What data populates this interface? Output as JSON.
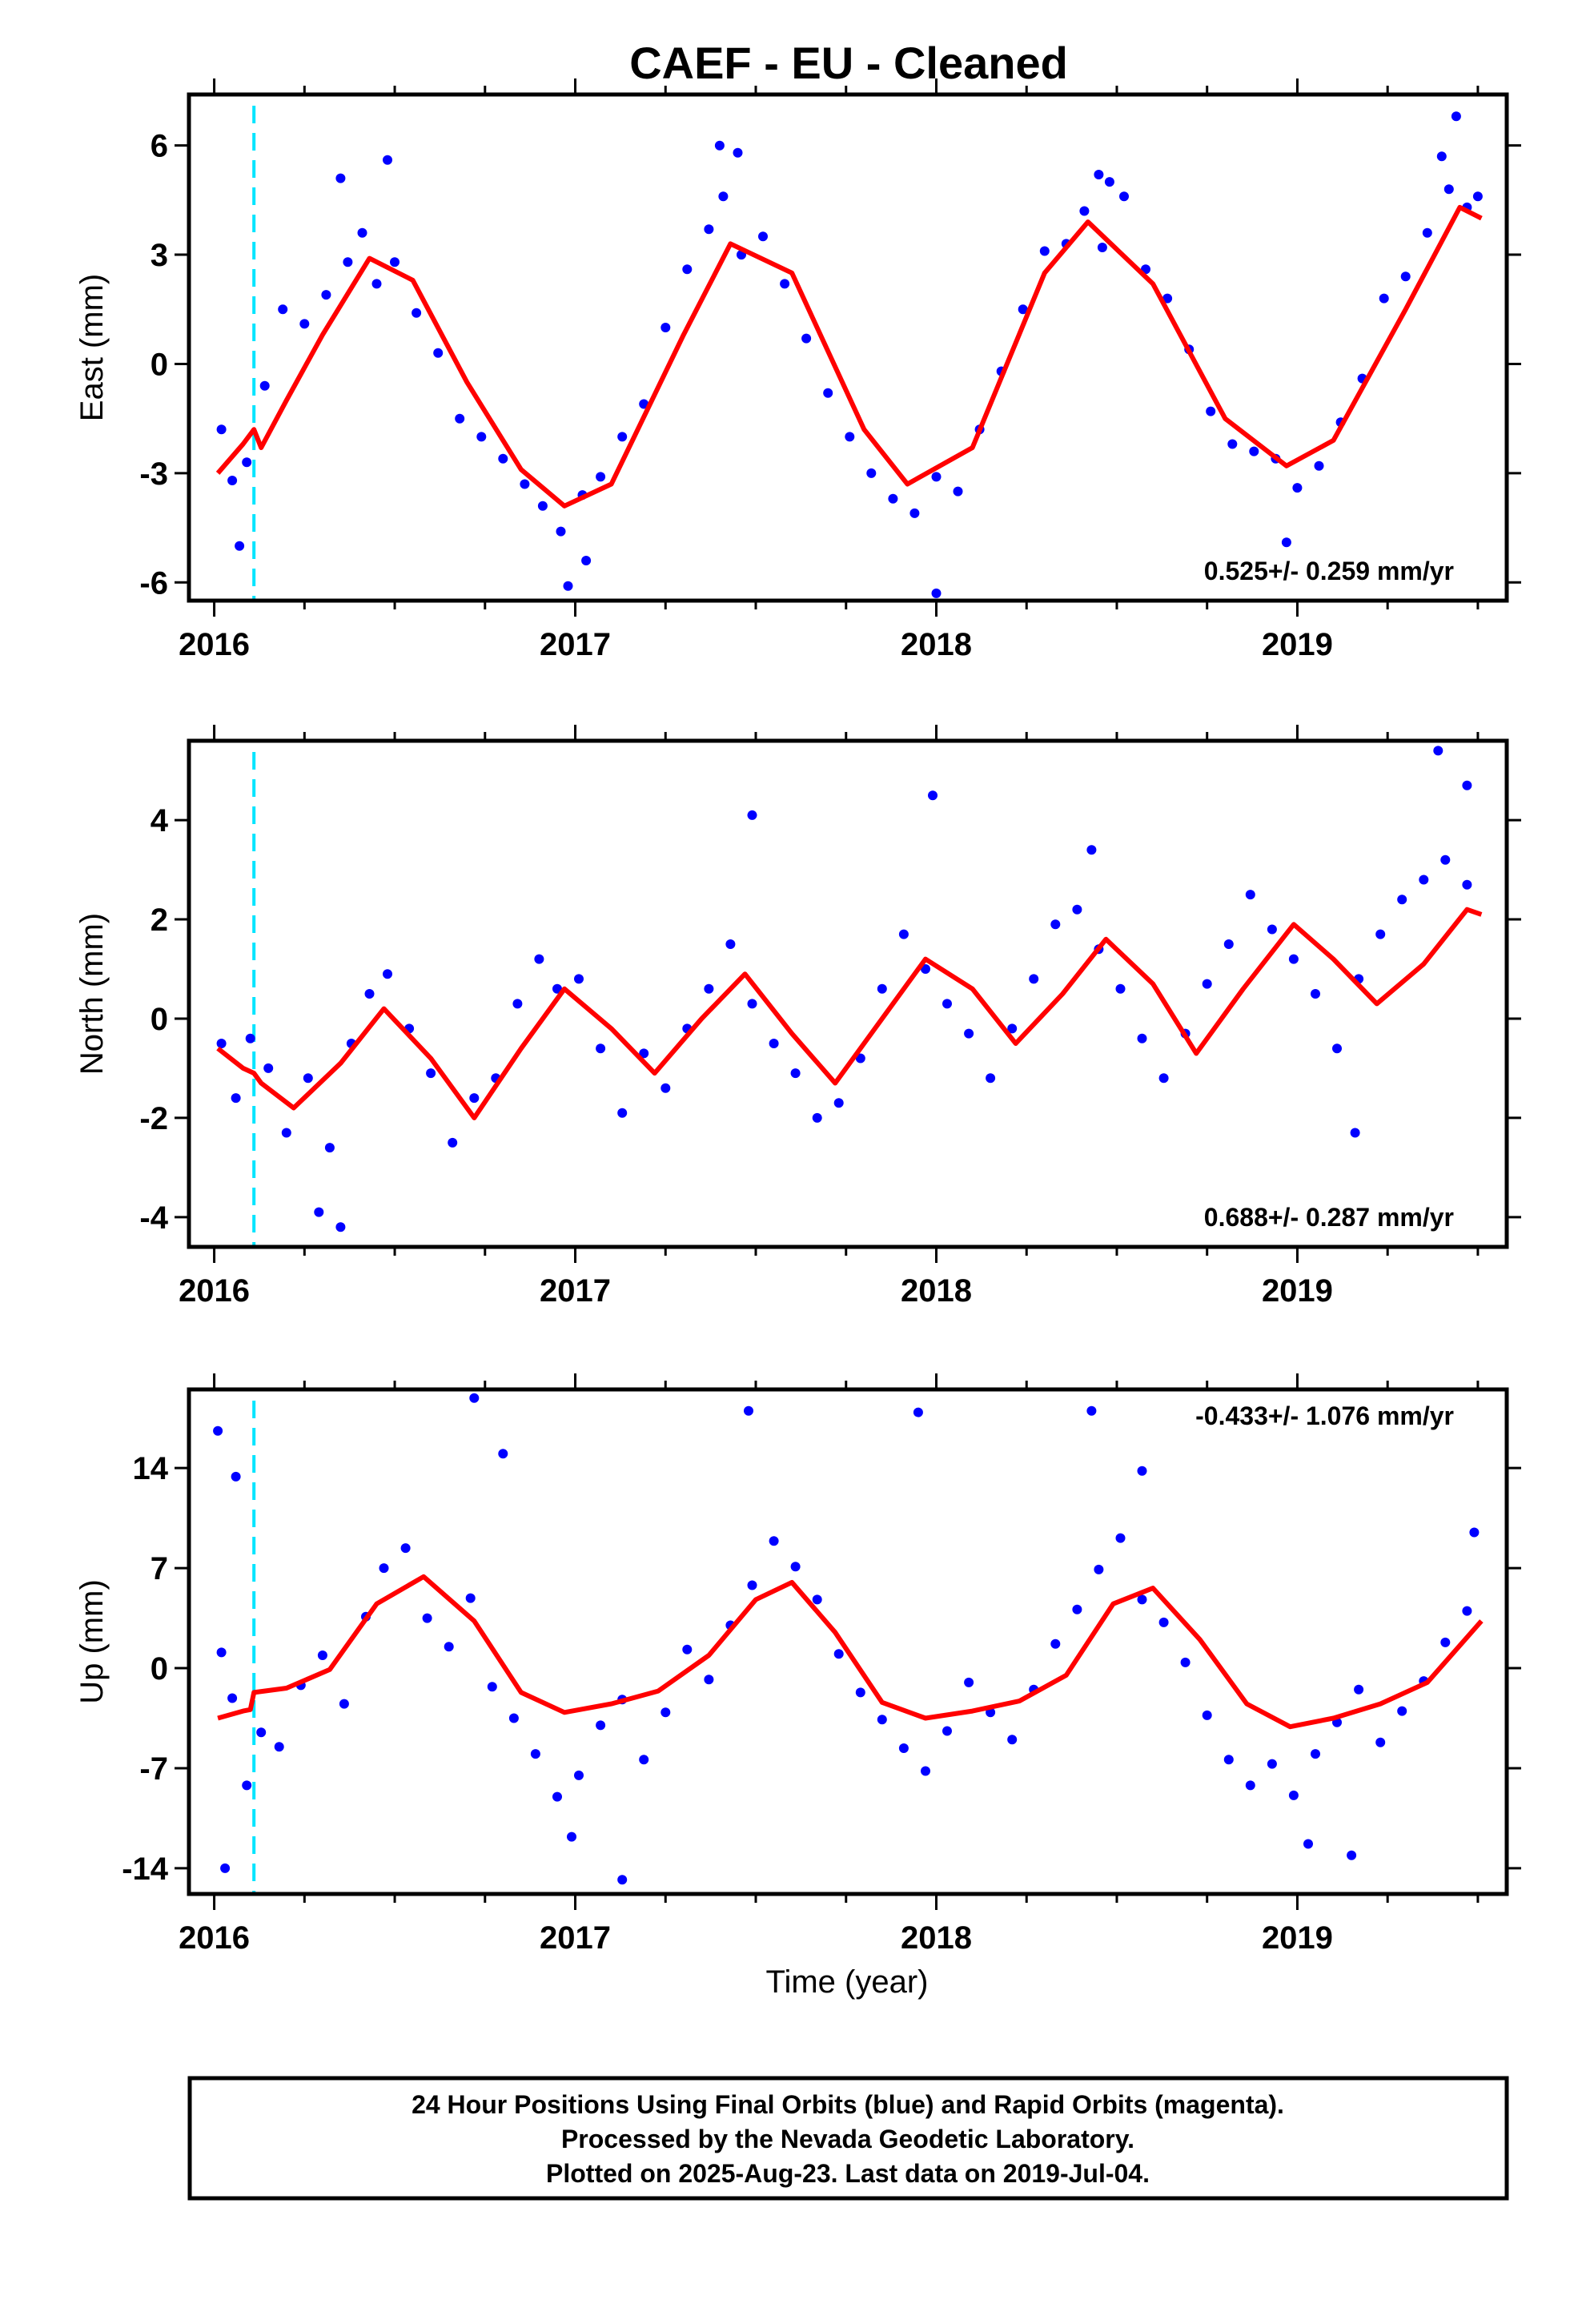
{
  "title": "CAEF  - EU - Cleaned",
  "xlabel": "Time (year)",
  "footer": {
    "line1": "24 Hour Positions Using Final Orbits (blue) and Rapid Orbits (magenta).",
    "line2": "Processed by the Nevada Geodetic Laboratory.",
    "line3": "Plotted on 2025-Aug-23. Last data on 2019-Jul-04."
  },
  "colors": {
    "points": "#0000ff",
    "fit": "#ff0000",
    "event_line": "#00e5ff",
    "frame": "#000000"
  },
  "chart_data": [
    {
      "type": "scatter",
      "component": "east",
      "ylabel": "East (mm)",
      "rate_label": "0.525+/- 0.259 mm/yr",
      "xlim": [
        2015.93,
        2019.58
      ],
      "ylim": [
        -6.5,
        7.4
      ],
      "yticks": [
        -6,
        -3,
        0,
        3,
        6
      ],
      "xticks": [
        2016,
        2017,
        2018,
        2019
      ],
      "event_lines": [
        2016.11
      ],
      "series": [
        {
          "role": "fit",
          "x": [
            2016.01,
            2016.08,
            2016.11,
            2016.13,
            2016.2,
            2016.3,
            2016.43,
            2016.55,
            2016.7,
            2016.85,
            2016.97,
            2017.1,
            2017.3,
            2017.43,
            2017.6,
            2017.8,
            2017.92,
            2018.1,
            2018.3,
            2018.42,
            2018.6,
            2018.8,
            2018.97,
            2019.1,
            2019.3,
            2019.45,
            2019.51
          ],
          "y": [
            -3.0,
            -2.2,
            -1.8,
            -2.3,
            -1.0,
            0.8,
            2.9,
            2.3,
            -0.5,
            -2.9,
            -3.9,
            -3.3,
            0.8,
            3.3,
            2.5,
            -1.8,
            -3.3,
            -2.3,
            2.5,
            3.9,
            2.2,
            -1.5,
            -2.8,
            -2.1,
            1.5,
            4.3,
            4.0
          ]
        },
        {
          "role": "points",
          "x": [
            2016.02,
            2016.05,
            2016.09,
            2016.14,
            2016.19,
            2016.25,
            2016.31,
            2016.37,
            2016.41,
            2016.45,
            2016.5,
            2016.56,
            2016.62,
            2016.68,
            2016.74,
            2016.8,
            2016.86,
            2016.91,
            2016.96,
            2017.02,
            2017.07,
            2017.13,
            2017.19,
            2017.25,
            2017.31,
            2017.37,
            2017.41,
            2017.46,
            2017.52,
            2017.58,
            2017.64,
            2017.7,
            2017.76,
            2017.82,
            2017.88,
            2017.94,
            2018.0,
            2018.06,
            2018.12,
            2018.18,
            2018.24,
            2018.3,
            2018.36,
            2018.41,
            2018.46,
            2018.52,
            2018.58,
            2018.64,
            2018.7,
            2018.76,
            2018.82,
            2018.88,
            2018.94,
            2019.0,
            2019.06,
            2019.12,
            2019.18,
            2019.24,
            2019.3,
            2019.36,
            2019.42,
            2019.47,
            2019.5,
            2016.07,
            2016.35,
            2016.48,
            2017.4,
            2017.45,
            2018.45,
            2018.48,
            2019.4,
            2019.44,
            2016.98,
            2017.03,
            2018.0,
            2018.97
          ],
          "y": [
            -1.8,
            -3.2,
            -2.7,
            -0.6,
            1.5,
            1.1,
            1.9,
            2.8,
            3.6,
            2.2,
            2.8,
            1.4,
            0.3,
            -1.5,
            -2.0,
            -2.6,
            -3.3,
            -3.9,
            -4.6,
            -3.6,
            -3.1,
            -2.0,
            -1.1,
            1.0,
            2.6,
            3.7,
            4.6,
            3.0,
            3.5,
            2.2,
            0.7,
            -0.8,
            -2.0,
            -3.0,
            -3.7,
            -4.1,
            -3.1,
            -3.5,
            -1.8,
            -0.2,
            1.5,
            3.1,
            3.3,
            4.2,
            3.2,
            4.6,
            2.6,
            1.8,
            0.4,
            -1.3,
            -2.2,
            -2.4,
            -2.6,
            -3.4,
            -2.8,
            -1.6,
            -0.4,
            1.8,
            2.4,
            3.6,
            4.8,
            4.3,
            4.6,
            -5.0,
            5.1,
            5.6,
            6.0,
            5.8,
            5.2,
            5.0,
            5.7,
            6.8,
            -6.1,
            -5.4,
            -6.3,
            -4.9
          ]
        }
      ]
    },
    {
      "type": "scatter",
      "component": "north",
      "ylabel": "North (mm)",
      "rate_label": "0.688+/- 0.287 mm/yr",
      "xlim": [
        2015.93,
        2019.58
      ],
      "ylim": [
        -4.6,
        5.6
      ],
      "yticks": [
        -4,
        -2,
        0,
        2,
        4
      ],
      "xticks": [
        2016,
        2017,
        2018,
        2019
      ],
      "event_lines": [
        2016.11
      ],
      "series": [
        {
          "role": "fit",
          "x": [
            2016.01,
            2016.08,
            2016.11,
            2016.13,
            2016.22,
            2016.35,
            2016.47,
            2016.6,
            2016.72,
            2016.85,
            2016.97,
            2017.1,
            2017.22,
            2017.35,
            2017.47,
            2017.6,
            2017.72,
            2017.85,
            2017.97,
            2018.1,
            2018.22,
            2018.35,
            2018.47,
            2018.6,
            2018.72,
            2018.85,
            2018.99,
            2019.1,
            2019.22,
            2019.35,
            2019.47,
            2019.51
          ],
          "y": [
            -0.6,
            -1.0,
            -1.1,
            -1.3,
            -1.8,
            -0.9,
            0.2,
            -0.8,
            -2.0,
            -0.6,
            0.6,
            -0.2,
            -1.1,
            0.0,
            0.9,
            -0.3,
            -1.3,
            0.0,
            1.2,
            0.6,
            -0.5,
            0.5,
            1.6,
            0.7,
            -0.7,
            0.6,
            1.9,
            1.2,
            0.3,
            1.1,
            2.2,
            2.1
          ]
        },
        {
          "role": "points",
          "x": [
            2016.02,
            2016.06,
            2016.1,
            2016.15,
            2016.2,
            2016.26,
            2016.32,
            2016.38,
            2016.43,
            2016.48,
            2016.54,
            2016.6,
            2016.66,
            2016.72,
            2016.78,
            2016.84,
            2016.9,
            2016.95,
            2017.01,
            2017.07,
            2017.13,
            2017.19,
            2017.25,
            2017.31,
            2017.37,
            2017.43,
            2017.49,
            2017.55,
            2017.61,
            2017.67,
            2017.73,
            2017.79,
            2017.85,
            2017.91,
            2017.97,
            2018.03,
            2018.09,
            2018.15,
            2018.21,
            2018.27,
            2018.33,
            2018.39,
            2018.45,
            2018.51,
            2018.57,
            2018.63,
            2018.69,
            2018.75,
            2018.81,
            2018.87,
            2018.93,
            2018.99,
            2019.05,
            2019.11,
            2019.17,
            2019.23,
            2019.29,
            2019.35,
            2019.41,
            2019.47,
            2016.29,
            2016.35,
            2017.49,
            2017.99,
            2018.43,
            2019.39,
            2019.47,
            2019.16
          ],
          "y": [
            -0.5,
            -1.6,
            -0.4,
            -1.0,
            -2.3,
            -1.2,
            -2.6,
            -0.5,
            0.5,
            0.9,
            -0.2,
            -1.1,
            -2.5,
            -1.6,
            -1.2,
            0.3,
            1.2,
            0.6,
            0.8,
            -0.6,
            -1.9,
            -0.7,
            -1.4,
            -0.2,
            0.6,
            1.5,
            0.3,
            -0.5,
            -1.1,
            -2.0,
            -1.7,
            -0.8,
            0.6,
            1.7,
            1.0,
            0.3,
            -0.3,
            -1.2,
            -0.2,
            0.8,
            1.9,
            2.2,
            1.4,
            0.6,
            -0.4,
            -1.2,
            -0.3,
            0.7,
            1.5,
            2.5,
            1.8,
            1.2,
            0.5,
            -0.6,
            0.8,
            1.7,
            2.4,
            2.8,
            3.2,
            2.7,
            -3.9,
            -4.2,
            4.1,
            4.5,
            3.4,
            5.4,
            4.7,
            -2.3
          ]
        }
      ]
    },
    {
      "type": "scatter",
      "component": "up",
      "ylabel": "Up (mm)",
      "rate_label": "-0.433+/- 1.076 mm/yr",
      "xlim": [
        2015.93,
        2019.58
      ],
      "ylim": [
        -15.8,
        19.5
      ],
      "yticks": [
        -14,
        -7,
        0,
        7,
        14
      ],
      "xticks": [
        2016,
        2017,
        2018,
        2019
      ],
      "event_lines": [
        2016.11
      ],
      "series": [
        {
          "role": "fit",
          "x": [
            2016.01,
            2016.08,
            2016.1,
            2016.11,
            2016.2,
            2016.32,
            2016.45,
            2016.58,
            2016.72,
            2016.85,
            2016.97,
            2017.1,
            2017.23,
            2017.37,
            2017.5,
            2017.6,
            2017.72,
            2017.85,
            2017.97,
            2018.1,
            2018.23,
            2018.36,
            2018.49,
            2018.6,
            2018.73,
            2018.86,
            2018.98,
            2019.1,
            2019.23,
            2019.36,
            2019.51
          ],
          "y": [
            -3.5,
            -3.0,
            -2.9,
            -1.7,
            -1.4,
            -0.1,
            4.5,
            6.4,
            3.3,
            -1.7,
            -3.1,
            -2.5,
            -1.6,
            0.9,
            4.8,
            6.0,
            2.5,
            -2.4,
            -3.5,
            -3.0,
            -2.3,
            -0.5,
            4.5,
            5.6,
            2.0,
            -2.5,
            -4.1,
            -3.5,
            -2.5,
            -1.0,
            3.3
          ]
        },
        {
          "role": "points",
          "x": [
            2016.02,
            2016.05,
            2016.09,
            2016.13,
            2016.18,
            2016.24,
            2016.3,
            2016.36,
            2016.42,
            2016.47,
            2016.53,
            2016.59,
            2016.65,
            2016.71,
            2016.77,
            2016.83,
            2016.89,
            2016.95,
            2017.01,
            2017.07,
            2017.13,
            2017.19,
            2017.25,
            2017.31,
            2017.37,
            2017.43,
            2017.49,
            2017.55,
            2017.61,
            2017.67,
            2017.73,
            2017.79,
            2017.85,
            2017.91,
            2017.97,
            2018.03,
            2018.09,
            2018.15,
            2018.21,
            2018.27,
            2018.33,
            2018.39,
            2018.45,
            2018.51,
            2018.57,
            2018.63,
            2018.69,
            2018.75,
            2018.81,
            2018.87,
            2018.93,
            2018.99,
            2019.05,
            2019.11,
            2019.17,
            2019.23,
            2019.29,
            2019.35,
            2019.41,
            2019.47,
            2016.01,
            2016.03,
            2016.06,
            2016.72,
            2016.8,
            2017.13,
            2017.48,
            2017.95,
            2018.43,
            2018.57,
            2019.03,
            2019.15,
            2019.49,
            2016.99
          ],
          "y": [
            1.1,
            -2.1,
            -8.2,
            -4.5,
            -5.5,
            -1.2,
            0.9,
            -2.5,
            3.6,
            7.0,
            8.4,
            3.5,
            1.5,
            4.9,
            -1.3,
            -3.5,
            -6.0,
            -9.0,
            -7.5,
            -4.0,
            -2.2,
            -6.4,
            -3.1,
            1.3,
            -0.8,
            3.0,
            5.8,
            8.9,
            7.1,
            4.8,
            1.0,
            -1.7,
            -3.6,
            -5.6,
            -7.2,
            -4.4,
            -1.0,
            -3.1,
            -5.0,
            -1.5,
            1.7,
            4.1,
            6.9,
            9.1,
            4.8,
            3.2,
            0.4,
            -3.3,
            -6.4,
            -8.2,
            -6.7,
            -8.9,
            -6.0,
            -3.8,
            -1.5,
            -5.2,
            -3.0,
            -0.9,
            1.8,
            4.0,
            16.6,
            -14.0,
            13.4,
            18.9,
            15.0,
            -14.8,
            18.0,
            17.9,
            18.0,
            13.8,
            -12.3,
            -13.1,
            9.5,
            -11.8
          ]
        }
      ]
    }
  ]
}
